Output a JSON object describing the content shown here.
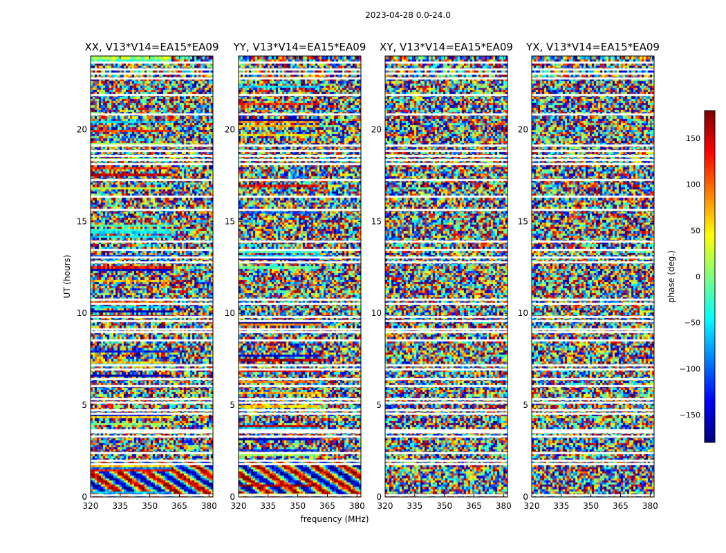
{
  "figure": {
    "suptitle": "2023-04-28 0.0-24.0"
  },
  "chart_data": [
    {
      "type": "heatmap",
      "title": "XX, V13*V14=EA15*EA09",
      "ylabel": "UT (hours)",
      "xlabel": "",
      "xlim": [
        320,
        382
      ],
      "ylim": [
        0,
        24
      ],
      "xticks": [
        320,
        335,
        350,
        365,
        380
      ],
      "yticks": [
        0,
        5,
        10,
        15,
        20
      ],
      "value": "phase (deg.)"
    },
    {
      "type": "heatmap",
      "title": "YY, V13*V14=EA15*EA09",
      "ylabel": "",
      "xlabel": "frequency (MHz)",
      "xlim": [
        320,
        382
      ],
      "ylim": [
        0,
        24
      ],
      "xticks": [
        320,
        335,
        350,
        365,
        380
      ],
      "yticks": [
        0,
        5,
        10,
        15,
        20
      ],
      "value": "phase (deg.)"
    },
    {
      "type": "heatmap",
      "title": "XY, V13*V14=EA15*EA09",
      "ylabel": "",
      "xlabel": "",
      "xlim": [
        320,
        382
      ],
      "ylim": [
        0,
        24
      ],
      "xticks": [
        320,
        335,
        350,
        365,
        380
      ],
      "yticks": [
        0,
        5,
        10,
        15,
        20
      ],
      "value": "phase (deg.)"
    },
    {
      "type": "heatmap",
      "title": "YX, V13*V14=EA15*EA09",
      "ylabel": "",
      "xlabel": "",
      "xlim": [
        320,
        382
      ],
      "ylim": [
        0,
        24
      ],
      "xticks": [
        320,
        335,
        350,
        365,
        380
      ],
      "yticks": [
        0,
        5,
        10,
        15,
        20
      ],
      "value": "phase (deg.)"
    }
  ],
  "colorbar": {
    "label": "phase (deg.)",
    "range": [
      -180,
      180
    ],
    "ticks": [
      -150,
      -100,
      -50,
      0,
      50,
      100,
      150
    ],
    "tick_labels": [
      "−150",
      "−100",
      "−50",
      "0",
      "50",
      "100",
      "150"
    ],
    "colormap": "jet",
    "colors": [
      "#00007f",
      "#0000ff",
      "#007fff",
      "#00ffff",
      "#7fff7f",
      "#ffff00",
      "#ff7f00",
      "#ff0000",
      "#7f0000"
    ]
  },
  "flagged_hours": [
    0.1,
    1.8,
    2.0,
    2.4,
    3.3,
    3.55,
    3.65,
    4.55,
    4.75,
    5.15,
    5.35,
    6.05,
    6.45,
    6.95,
    7.2,
    8.55,
    9.0,
    9.15,
    9.6,
    9.8,
    10.55,
    10.75,
    12.8,
    13.05,
    13.45,
    13.9,
    15.65,
    16.35,
    17.25,
    18.15,
    18.35,
    18.6,
    18.85,
    19.15,
    20.85,
    21.9,
    22.8,
    23.05,
    23.3,
    23.65
  ]
}
